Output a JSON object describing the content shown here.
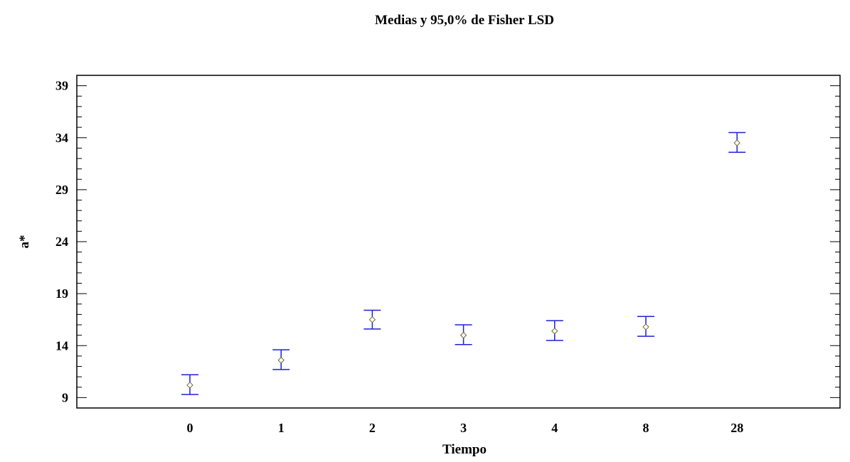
{
  "chart_data": {
    "type": "scatter",
    "title": "Medias y 95,0% de Fisher LSD",
    "xlabel": "Tiempo",
    "ylabel": "a*",
    "categories": [
      "0",
      "1",
      "2",
      "3",
      "4",
      "8",
      "28"
    ],
    "means": [
      10.2,
      12.6,
      16.5,
      15.0,
      15.4,
      15.8,
      33.5
    ],
    "lower": [
      9.3,
      11.7,
      15.6,
      14.1,
      14.5,
      14.9,
      32.6
    ],
    "upper": [
      11.2,
      13.6,
      17.4,
      16.0,
      16.4,
      16.8,
      34.5
    ],
    "ylim": [
      8.0,
      40.0
    ],
    "yticks": [
      9,
      14,
      19,
      24,
      29,
      34,
      39
    ],
    "ytick_labels": [
      "9",
      "14",
      "19",
      "24",
      "29",
      "34",
      "39"
    ],
    "grid": false,
    "colors": {
      "error_bar": "#1f1fd6",
      "marker": "#6b6b2a",
      "axes": "#000000"
    }
  }
}
